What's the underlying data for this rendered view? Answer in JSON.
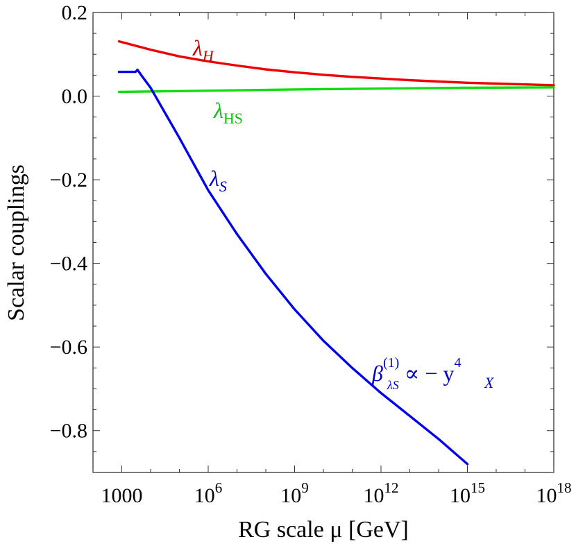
{
  "chart_data": {
    "type": "line",
    "xlabel": "RG scale μ  [GeV]",
    "ylabel": "Scalar couplings",
    "x_scale": "log10",
    "xlim": [
      100,
      1e+18
    ],
    "ylim": [
      -0.9,
      0.2
    ],
    "grid": false,
    "x_ticks": [
      {
        "value": 1000,
        "base": "1000",
        "exp": ""
      },
      {
        "value": 1000000.0,
        "base": "10",
        "exp": "6"
      },
      {
        "value": 1000000000.0,
        "base": "10",
        "exp": "9"
      },
      {
        "value": 1000000000000.0,
        "base": "10",
        "exp": "12"
      },
      {
        "value": 1000000000000000.0,
        "base": "10",
        "exp": "15"
      },
      {
        "value": 1e+18,
        "base": "10",
        "exp": "18"
      }
    ],
    "y_ticks": [
      {
        "value": 0.2,
        "label": "0.2"
      },
      {
        "value": 0.0,
        "label": "0.0"
      },
      {
        "value": -0.2,
        "label": "−0.2"
      },
      {
        "value": -0.4,
        "label": "−0.4"
      },
      {
        "value": -0.6,
        "label": "−0.6"
      },
      {
        "value": -0.8,
        "label": "−0.8"
      }
    ],
    "series": [
      {
        "name": "λH",
        "color": "#ee0000",
        "x": [
          800,
          10000.0,
          100000.0,
          1000000.0,
          10000000.0,
          100000000.0,
          1000000000.0,
          10000000000.0,
          100000000000.0,
          1000000000000.0,
          10000000000000.0,
          100000000000000.0,
          1000000000000000.0,
          1e+16,
          1e+17,
          1e+18
        ],
        "y": [
          0.131,
          0.111,
          0.095,
          0.083,
          0.073,
          0.064,
          0.057,
          0.051,
          0.046,
          0.042,
          0.038,
          0.035,
          0.032,
          0.03,
          0.028,
          0.026
        ]
      },
      {
        "name": "λHS",
        "color": "#11dd11",
        "x": [
          800,
          100000.0,
          1000000000.0,
          1000000000000.0,
          1000000000000000.0,
          1e+18
        ],
        "y": [
          0.01,
          0.012,
          0.016,
          0.018,
          0.02,
          0.021
        ]
      },
      {
        "name": "λS",
        "color": "#0000ee",
        "x": [
          800,
          3000,
          3500,
          5000,
          10000.0,
          100000.0,
          1000000.0,
          10000000.0,
          100000000.0,
          1000000000.0,
          10000000000.0,
          100000000000.0,
          1000000000000.0,
          10000000000000.0,
          100000000000000.0,
          1000000000000000.0
        ],
        "y": [
          0.058,
          0.058,
          0.063,
          0.048,
          0.02,
          -0.1,
          -0.225,
          -0.33,
          -0.425,
          -0.51,
          -0.585,
          -0.65,
          -0.71,
          -0.765,
          -0.82,
          -0.88
        ]
      }
    ],
    "annotations": {
      "lambda_h": {
        "base": "λ",
        "sub": "H",
        "color": "#cc0000"
      },
      "lambda_hs": {
        "base": "λ",
        "sub": "HS",
        "color": "#11bb11"
      },
      "lambda_s": {
        "base": "λ",
        "sub": "S",
        "color": "#0000cc"
      },
      "beta": {
        "base": "β",
        "sup": "(1)",
        "sub": "λS",
        "middle": " ∝ − y",
        "sup2": "4",
        "sub2": "X",
        "color": "#0000cc"
      }
    }
  }
}
